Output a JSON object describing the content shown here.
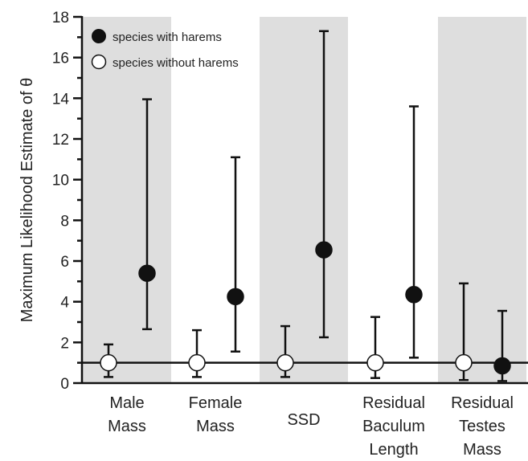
{
  "chart_data": {
    "type": "errorbar",
    "ylabel": "Maximum Likelihood Estimate of θ",
    "ylim": [
      0,
      18
    ],
    "y_ticks": [
      "0",
      "2",
      "4",
      "6",
      "8",
      "10",
      "12",
      "14",
      "16",
      "18"
    ],
    "reference_line_y": 1,
    "categories": [
      [
        "Male",
        "Mass"
      ],
      [
        "Female",
        "Mass"
      ],
      [
        "SSD"
      ],
      [
        "Residual",
        "Baculum",
        "Length"
      ],
      [
        "Residual",
        "Testes",
        "Mass"
      ]
    ],
    "series": [
      {
        "name": "species with harems",
        "marker": "filled",
        "points": [
          {
            "estimate": 5.4,
            "lower": 2.65,
            "upper": 13.95
          },
          {
            "estimate": 4.25,
            "lower": 1.55,
            "upper": 11.1
          },
          {
            "estimate": 6.55,
            "lower": 2.25,
            "upper": 17.3
          },
          {
            "estimate": 4.35,
            "lower": 1.25,
            "upper": 13.6
          },
          {
            "estimate": 0.85,
            "lower": 0.1,
            "upper": 3.55
          }
        ]
      },
      {
        "name": "species without harems",
        "marker": "open",
        "points": [
          {
            "estimate": 1.0,
            "lower": 0.3,
            "upper": 1.9
          },
          {
            "estimate": 1.0,
            "lower": 0.3,
            "upper": 2.6
          },
          {
            "estimate": 1.0,
            "lower": 0.3,
            "upper": 2.8
          },
          {
            "estimate": 1.0,
            "lower": 0.25,
            "upper": 3.25
          },
          {
            "estimate": 1.0,
            "lower": 0.15,
            "upper": 4.9
          }
        ]
      }
    ],
    "shaded_bands": [
      0,
      2,
      4
    ],
    "legend_position": "top-left",
    "colors": {
      "band": "#dedede",
      "ink": "#111111",
      "open_fill": "#ffffff"
    }
  }
}
